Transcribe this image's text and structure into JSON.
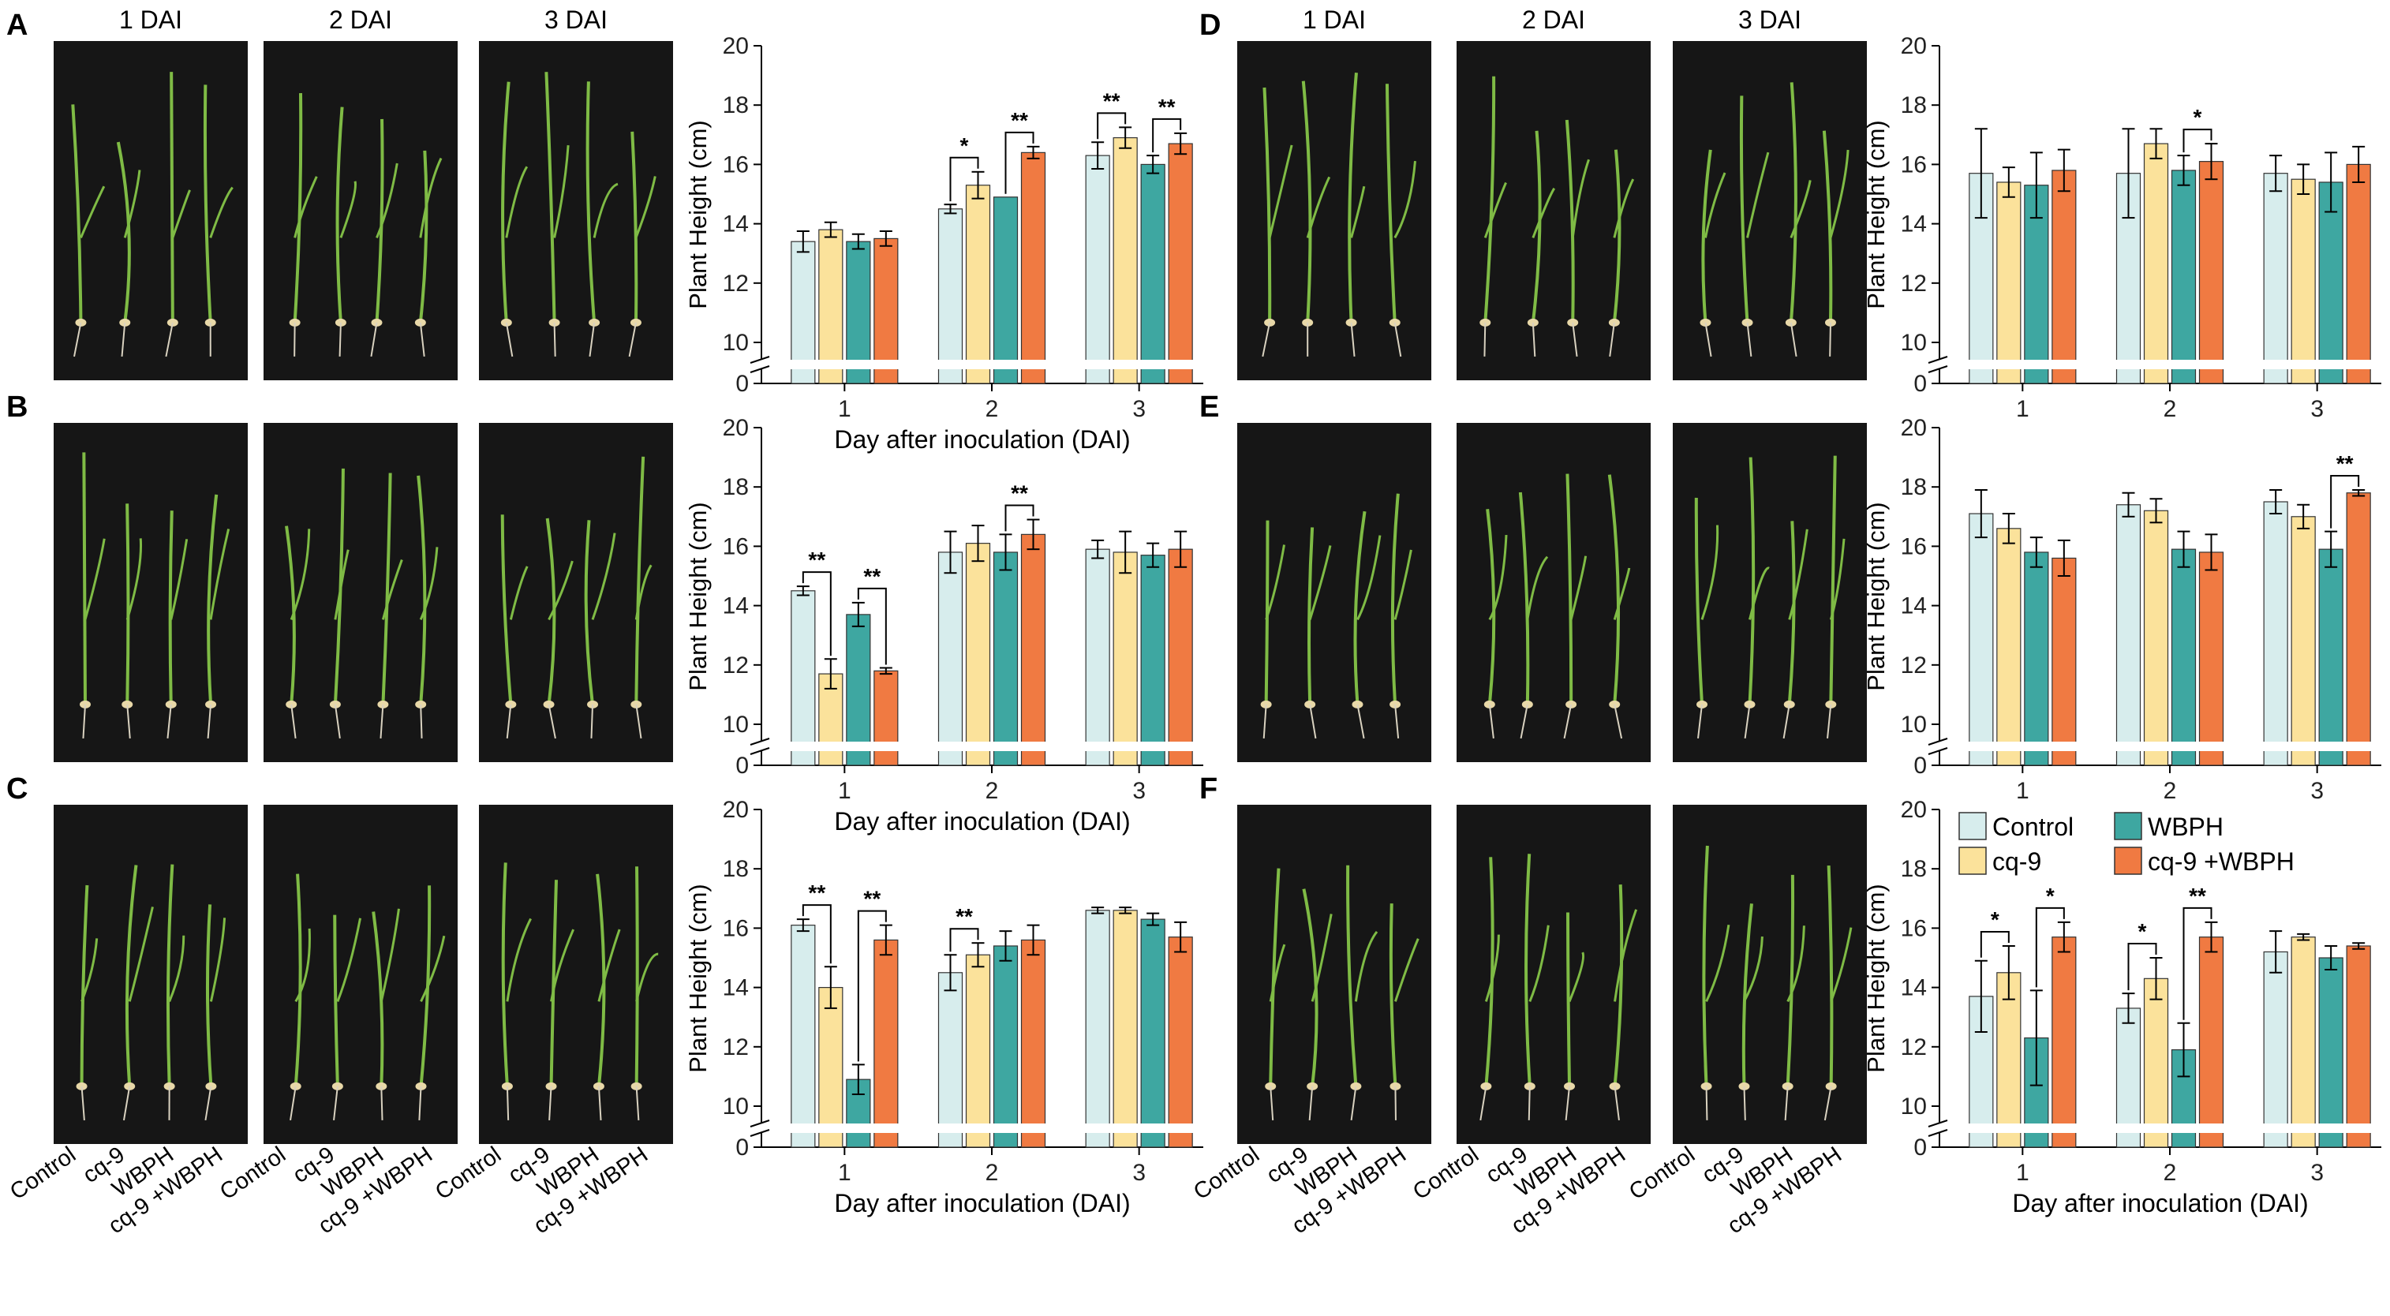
{
  "colors": {
    "control": "#d7eded",
    "cq9": "#fbe29b",
    "wbph": "#3ea7a1",
    "cq9_wbph": "#f07a42",
    "photo_bg": "#161616",
    "leaf": "#7fbb45"
  },
  "figure": {
    "day_labels": [
      "1 DAI",
      "2 DAI",
      "3 DAI"
    ],
    "treatment_labels": [
      "Control",
      "cq-9",
      "WBPH",
      "cq-9 +WBPH"
    ],
    "panels_left": [
      "A",
      "B",
      "C"
    ],
    "panels_right": [
      "D",
      "E",
      "F"
    ]
  },
  "legend": {
    "items": [
      {
        "label": "Control",
        "color": "#d7eded"
      },
      {
        "label": "WBPH",
        "color": "#3ea7a1"
      },
      {
        "label": "cq-9",
        "color": "#fbe29b"
      },
      {
        "label": "cq-9 +WBPH",
        "color": "#f07a42"
      }
    ]
  },
  "chart_data": [
    {
      "panel": "A",
      "type": "bar",
      "ylabel": "Plant Height (cm)",
      "xlabel": "Day after inoculation (DAI)",
      "categories": [
        "1",
        "2",
        "3"
      ],
      "ylim": [
        0,
        20
      ],
      "yticks": [
        0,
        10,
        12,
        14,
        16,
        18,
        20
      ],
      "axis_break": true,
      "series": [
        {
          "name": "Control",
          "values": [
            13.4,
            14.5,
            16.3
          ],
          "errors": [
            0.35,
            0.15,
            0.45
          ]
        },
        {
          "name": "cq-9",
          "values": [
            13.8,
            15.3,
            16.9
          ],
          "errors": [
            0.25,
            0.45,
            0.35
          ]
        },
        {
          "name": "WBPH",
          "values": [
            13.4,
            14.9,
            16.0
          ],
          "errors": [
            0.25,
            0.0,
            0.3
          ]
        },
        {
          "name": "cq-9 +WBPH",
          "values": [
            13.5,
            16.4,
            16.7
          ],
          "errors": [
            0.25,
            0.2,
            0.35
          ]
        }
      ],
      "significance": [
        {
          "group": 1,
          "from": 0,
          "to": 1,
          "label": "*"
        },
        {
          "group": 1,
          "from": 2,
          "to": 3,
          "label": "**"
        },
        {
          "group": 2,
          "from": 0,
          "to": 1,
          "label": "**"
        },
        {
          "group": 2,
          "from": 2,
          "to": 3,
          "label": "**"
        }
      ]
    },
    {
      "panel": "B",
      "type": "bar",
      "ylabel": "Plant Height (cm)",
      "xlabel": "Day after inoculation (DAI)",
      "categories": [
        "1",
        "2",
        "3"
      ],
      "ylim": [
        0,
        20
      ],
      "yticks": [
        0,
        10,
        12,
        14,
        16,
        18,
        20
      ],
      "axis_break": true,
      "series": [
        {
          "name": "Control",
          "values": [
            14.5,
            15.8,
            15.9
          ],
          "errors": [
            0.15,
            0.7,
            0.3
          ]
        },
        {
          "name": "cq-9",
          "values": [
            11.7,
            16.1,
            15.8
          ],
          "errors": [
            0.5,
            0.6,
            0.7
          ]
        },
        {
          "name": "WBPH",
          "values": [
            13.7,
            15.8,
            15.7
          ],
          "errors": [
            0.4,
            0.6,
            0.4
          ]
        },
        {
          "name": "cq-9 +WBPH",
          "values": [
            11.8,
            16.4,
            15.9
          ],
          "errors": [
            0.1,
            0.5,
            0.6
          ]
        }
      ],
      "significance": [
        {
          "group": 0,
          "from": 0,
          "to": 1,
          "label": "**"
        },
        {
          "group": 0,
          "from": 2,
          "to": 3,
          "label": "**"
        },
        {
          "group": 1,
          "from": 2,
          "to": 3,
          "label": "**"
        }
      ]
    },
    {
      "panel": "C",
      "type": "bar",
      "ylabel": "Plant Height (cm)",
      "xlabel": "Day after inoculation (DAI)",
      "categories": [
        "1",
        "2",
        "3"
      ],
      "ylim": [
        0,
        20
      ],
      "yticks": [
        0,
        10,
        12,
        14,
        16,
        18,
        20
      ],
      "axis_break": true,
      "series": [
        {
          "name": "Control",
          "values": [
            16.1,
            14.5,
            16.6
          ],
          "errors": [
            0.2,
            0.6,
            0.1
          ]
        },
        {
          "name": "cq-9",
          "values": [
            14.0,
            15.1,
            16.6
          ],
          "errors": [
            0.7,
            0.4,
            0.1
          ]
        },
        {
          "name": "WBPH",
          "values": [
            10.9,
            15.4,
            16.3
          ],
          "errors": [
            0.5,
            0.5,
            0.2
          ]
        },
        {
          "name": "cq-9 +WBPH",
          "values": [
            15.6,
            15.6,
            15.7
          ],
          "errors": [
            0.5,
            0.5,
            0.5
          ]
        }
      ],
      "significance": [
        {
          "group": 0,
          "from": 0,
          "to": 1,
          "label": "**"
        },
        {
          "group": 0,
          "from": 2,
          "to": 3,
          "label": "**"
        },
        {
          "group": 1,
          "from": 0,
          "to": 1,
          "label": "**"
        }
      ]
    },
    {
      "panel": "D",
      "type": "bar",
      "ylabel": "Plant Height (cm)",
      "xlabel": "",
      "categories": [
        "1",
        "2",
        "3"
      ],
      "ylim": [
        0,
        20
      ],
      "yticks": [
        0,
        10,
        12,
        14,
        16,
        18,
        20
      ],
      "axis_break": true,
      "series": [
        {
          "name": "Control",
          "values": [
            15.7,
            15.7,
            15.7
          ],
          "errors": [
            1.5,
            1.5,
            0.6
          ]
        },
        {
          "name": "cq-9",
          "values": [
            15.4,
            16.7,
            15.5
          ],
          "errors": [
            0.5,
            0.5,
            0.5
          ]
        },
        {
          "name": "WBPH",
          "values": [
            15.3,
            15.8,
            15.4
          ],
          "errors": [
            1.1,
            0.5,
            1.0
          ]
        },
        {
          "name": "cq-9 +WBPH",
          "values": [
            15.8,
            16.1,
            16.0
          ],
          "errors": [
            0.7,
            0.6,
            0.6
          ]
        }
      ],
      "significance": [
        {
          "group": 1,
          "from": 2,
          "to": 3,
          "label": "*"
        }
      ]
    },
    {
      "panel": "E",
      "type": "bar",
      "ylabel": "Plant Height (cm)",
      "xlabel": "",
      "categories": [
        "1",
        "2",
        "3"
      ],
      "ylim": [
        0,
        20
      ],
      "yticks": [
        0,
        10,
        12,
        14,
        16,
        18,
        20
      ],
      "axis_break": true,
      "series": [
        {
          "name": "Control",
          "values": [
            17.1,
            17.4,
            17.5
          ],
          "errors": [
            0.8,
            0.4,
            0.4
          ]
        },
        {
          "name": "cq-9",
          "values": [
            16.6,
            17.2,
            17.0
          ],
          "errors": [
            0.5,
            0.4,
            0.4
          ]
        },
        {
          "name": "WBPH",
          "values": [
            15.8,
            15.9,
            15.9
          ],
          "errors": [
            0.5,
            0.6,
            0.6
          ]
        },
        {
          "name": "cq-9 +WBPH",
          "values": [
            15.6,
            15.8,
            17.8
          ],
          "errors": [
            0.6,
            0.6,
            0.1
          ]
        }
      ],
      "significance": [
        {
          "group": 2,
          "from": 2,
          "to": 3,
          "label": "**"
        }
      ]
    },
    {
      "panel": "F",
      "type": "bar",
      "ylabel": "Plant Height (cm)",
      "xlabel": "Day after inoculation (DAI)",
      "categories": [
        "1",
        "2",
        "3"
      ],
      "ylim": [
        0,
        20
      ],
      "yticks": [
        0,
        10,
        12,
        14,
        16,
        18,
        20
      ],
      "axis_break": true,
      "series": [
        {
          "name": "Control",
          "values": [
            13.7,
            13.3,
            15.2
          ],
          "errors": [
            1.2,
            0.5,
            0.7
          ]
        },
        {
          "name": "cq-9",
          "values": [
            14.5,
            14.3,
            15.7
          ],
          "errors": [
            0.9,
            0.7,
            0.1
          ]
        },
        {
          "name": "WBPH",
          "values": [
            12.3,
            11.9,
            15.0
          ],
          "errors": [
            1.6,
            0.9,
            0.4
          ]
        },
        {
          "name": "cq-9 +WBPH",
          "values": [
            15.7,
            15.7,
            15.4
          ],
          "errors": [
            0.5,
            0.5,
            0.1
          ]
        }
      ],
      "significance": [
        {
          "group": 0,
          "from": 0,
          "to": 1,
          "label": "*"
        },
        {
          "group": 0,
          "from": 2,
          "to": 3,
          "label": "*"
        },
        {
          "group": 1,
          "from": 0,
          "to": 1,
          "label": "*"
        },
        {
          "group": 1,
          "from": 2,
          "to": 3,
          "label": "**"
        }
      ]
    }
  ]
}
